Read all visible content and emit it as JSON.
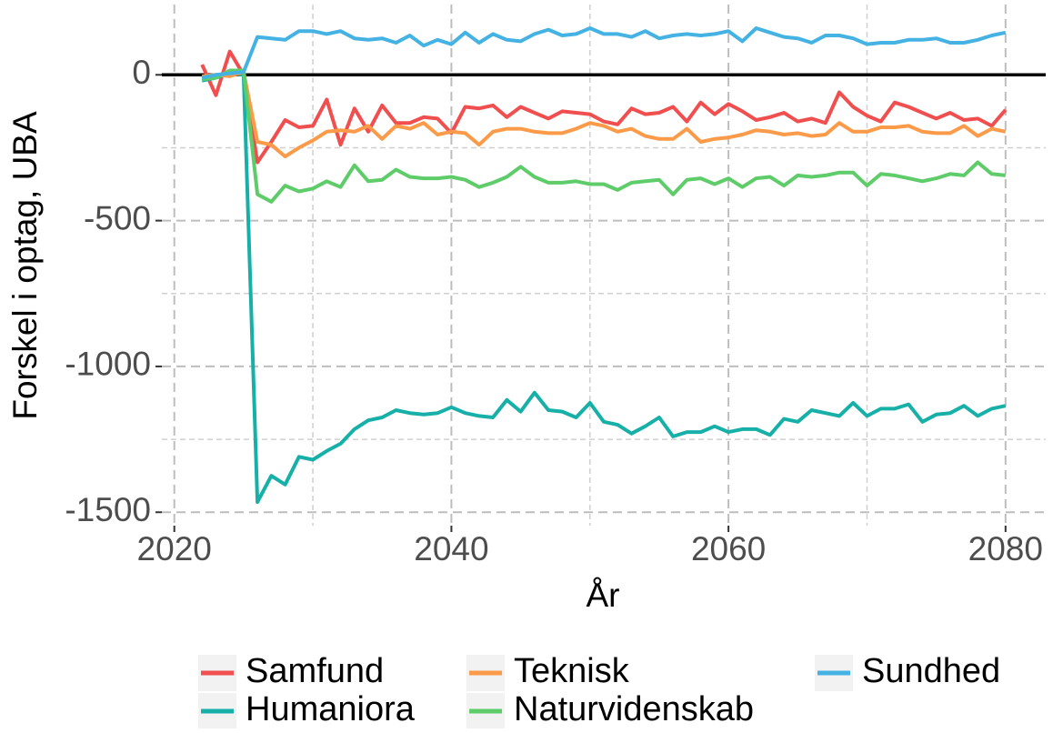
{
  "chart_data": {
    "type": "line",
    "x_label": "År",
    "y_label": "Forskel i optag, UBA",
    "x": [
      2022,
      2023,
      2024,
      2025,
      2026,
      2027,
      2028,
      2029,
      2030,
      2031,
      2032,
      2033,
      2034,
      2035,
      2036,
      2037,
      2038,
      2039,
      2040,
      2041,
      2042,
      2043,
      2044,
      2045,
      2046,
      2047,
      2048,
      2049,
      2050,
      2051,
      2052,
      2053,
      2054,
      2055,
      2056,
      2057,
      2058,
      2059,
      2060,
      2061,
      2062,
      2063,
      2064,
      2065,
      2066,
      2067,
      2068,
      2069,
      2070,
      2071,
      2072,
      2073,
      2074,
      2075,
      2076,
      2077,
      2078,
      2079,
      2080
    ],
    "series": [
      {
        "name": "Samfund",
        "color": "#f14f4f",
        "values": [
          35,
          -70,
          80,
          0,
          -300,
          -230,
          -155,
          -180,
          -175,
          -85,
          -240,
          -115,
          -195,
          -105,
          -165,
          -165,
          -145,
          -150,
          -200,
          -110,
          -115,
          -105,
          -145,
          -110,
          -130,
          -150,
          -125,
          -130,
          -135,
          -160,
          -170,
          -115,
          -135,
          -130,
          -110,
          -160,
          -95,
          -135,
          -100,
          -125,
          -155,
          -145,
          -130,
          -160,
          -150,
          -165,
          -60,
          -110,
          -140,
          -160,
          -95,
          -110,
          -130,
          -150,
          -130,
          -155,
          -150,
          -175,
          -120
        ]
      },
      {
        "name": "Humaniora",
        "color": "#17b0a8",
        "values": [
          -20,
          -10,
          5,
          0,
          -1465,
          -1375,
          -1405,
          -1310,
          -1320,
          -1290,
          -1265,
          -1215,
          -1185,
          -1175,
          -1150,
          -1160,
          -1165,
          -1160,
          -1140,
          -1160,
          -1170,
          -1175,
          -1115,
          -1155,
          -1090,
          -1150,
          -1155,
          -1175,
          -1125,
          -1190,
          -1200,
          -1230,
          -1205,
          -1175,
          -1240,
          -1225,
          -1225,
          -1205,
          -1225,
          -1215,
          -1215,
          -1235,
          -1180,
          -1190,
          -1150,
          -1160,
          -1170,
          -1125,
          -1170,
          -1145,
          -1145,
          -1130,
          -1190,
          -1165,
          -1160,
          -1135,
          -1170,
          -1145,
          -1135
        ]
      },
      {
        "name": "Teknisk",
        "color": "#fb9a48",
        "values": [
          -5,
          0,
          -5,
          10,
          -230,
          -240,
          -280,
          -250,
          -225,
          -195,
          -190,
          -195,
          -175,
          -220,
          -175,
          -185,
          -165,
          -205,
          -195,
          -200,
          -240,
          -195,
          -185,
          -185,
          -195,
          -200,
          -200,
          -185,
          -165,
          -175,
          -195,
          -185,
          -210,
          -220,
          -220,
          -185,
          -230,
          -220,
          -215,
          -205,
          -190,
          -195,
          -205,
          -200,
          -210,
          -205,
          -165,
          -195,
          -195,
          -180,
          -180,
          -175,
          -195,
          -200,
          -200,
          -175,
          -210,
          -185,
          -195
        ]
      },
      {
        "name": "Naturvidenskab",
        "color": "#5fcc6a",
        "values": [
          -15,
          -10,
          15,
          15,
          -410,
          -435,
          -380,
          -400,
          -390,
          -365,
          -385,
          -310,
          -365,
          -360,
          -325,
          -350,
          -355,
          -355,
          -350,
          -360,
          -385,
          -370,
          -350,
          -315,
          -350,
          -370,
          -370,
          -365,
          -375,
          -375,
          -395,
          -370,
          -365,
          -360,
          -410,
          -360,
          -355,
          -375,
          -355,
          -385,
          -355,
          -350,
          -380,
          -345,
          -350,
          -345,
          -335,
          -335,
          -380,
          -340,
          -345,
          -355,
          -365,
          -355,
          -340,
          -345,
          -300,
          -340,
          -345
        ]
      },
      {
        "name": "Sundhed",
        "color": "#45b2e4",
        "values": [
          -10,
          0,
          5,
          10,
          130,
          125,
          120,
          150,
          150,
          140,
          150,
          125,
          120,
          125,
          110,
          135,
          100,
          120,
          105,
          145,
          110,
          140,
          120,
          115,
          140,
          155,
          135,
          140,
          160,
          140,
          140,
          130,
          150,
          125,
          135,
          140,
          135,
          140,
          150,
          115,
          160,
          145,
          130,
          125,
          110,
          135,
          135,
          125,
          105,
          110,
          110,
          120,
          120,
          125,
          110,
          110,
          120,
          135,
          145
        ]
      }
    ],
    "xlim": [
      2019.1,
      2082.9
    ],
    "xticks": [
      2020,
      2040,
      2060,
      2080
    ],
    "x_minor_ticks": [
      2030,
      2050,
      2070
    ],
    "ylim": [
      -1546,
      241
    ],
    "yticks": [
      -1500,
      -1000,
      -500,
      0
    ],
    "y_minor_ticks": [
      -1250,
      -750,
      -250
    ],
    "hline": 0,
    "grid": true,
    "legend": "bottom"
  }
}
